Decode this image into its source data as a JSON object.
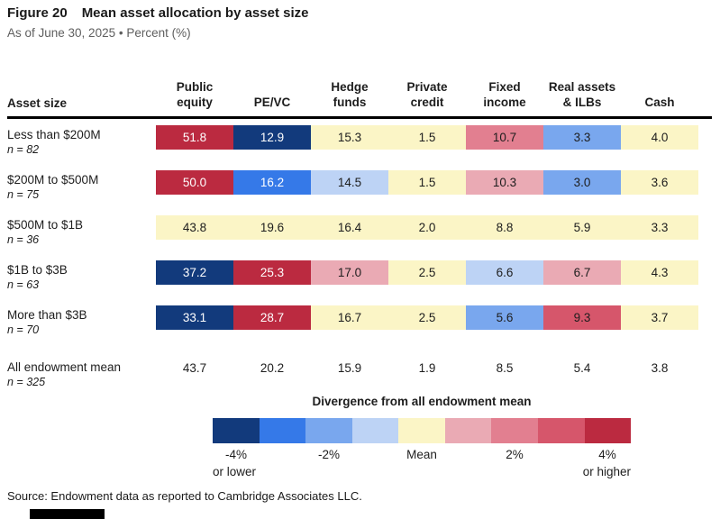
{
  "header": {
    "figure_label": "Figure 20",
    "title": "Mean asset allocation by asset size",
    "subtitle": "As of June 30, 2025 • Percent (%)"
  },
  "table": {
    "row_header": "Asset size",
    "columns": [
      {
        "line1": "Public",
        "line2": "equity"
      },
      {
        "line1": "",
        "line2": "PE/VC"
      },
      {
        "line1": "Hedge",
        "line2": "funds"
      },
      {
        "line1": "Private",
        "line2": "credit"
      },
      {
        "line1": "Fixed",
        "line2": "income"
      },
      {
        "line1": "Real assets",
        "line2": "& ILBs"
      },
      {
        "line1": "",
        "line2": "Cash"
      }
    ],
    "rows": [
      {
        "label": "Less than $200M",
        "n": "n = 82",
        "values": [
          "51.8",
          "12.9",
          "15.3",
          "1.5",
          "10.7",
          "3.3",
          "4.0"
        ],
        "segs": [
          9,
          1,
          5,
          5,
          7,
          3,
          5
        ]
      },
      {
        "label": "$200M to $500M",
        "n": "n = 75",
        "values": [
          "50.0",
          "16.2",
          "14.5",
          "1.5",
          "10.3",
          "3.0",
          "3.6"
        ],
        "segs": [
          9,
          2,
          4,
          5,
          6,
          3,
          5
        ]
      },
      {
        "label": "$500M to $1B",
        "n": "n = 36",
        "values": [
          "43.8",
          "19.6",
          "16.4",
          "2.0",
          "8.8",
          "5.9",
          "3.3"
        ],
        "segs": [
          5,
          5,
          5,
          5,
          5,
          5,
          5
        ]
      },
      {
        "label": "$1B to $3B",
        "n": "n = 63",
        "values": [
          "37.2",
          "25.3",
          "17.0",
          "2.5",
          "6.6",
          "6.7",
          "4.3"
        ],
        "segs": [
          1,
          9,
          6,
          5,
          4,
          6,
          5
        ]
      },
      {
        "label": "More than $3B",
        "n": "n = 70",
        "values": [
          "33.1",
          "28.7",
          "16.7",
          "2.5",
          "5.6",
          "9.3",
          "3.7"
        ],
        "segs": [
          1,
          9,
          5,
          5,
          3,
          8,
          5
        ]
      }
    ],
    "mean_row": {
      "label": "All endowment mean",
      "n": "n = 325",
      "values": [
        "43.7",
        "20.2",
        "15.9",
        "1.9",
        "8.5",
        "5.4",
        "3.8"
      ]
    }
  },
  "legend": {
    "title": "Divergence from all endowment mean",
    "segment_colors": [
      "#123a7c",
      "#3579e8",
      "#79a7ee",
      "#bdd3f5",
      "#fbf5c6",
      "#eaaab4",
      "#e27f90",
      "#d6566b",
      "#bb2a40"
    ],
    "white_text_segments": [
      1,
      2,
      9
    ],
    "text_color": "#1d1d1d",
    "tick_minus4": "-4%",
    "tick_minus4_sub": "or lower",
    "tick_minus2": "-2%",
    "tick_mean": "Mean",
    "tick_plus2": "2%",
    "tick_plus4": "4%",
    "tick_plus4_sub": "or higher"
  },
  "source": "Source: Endowment data as reported to Cambridge Associates LLC.",
  "chart_data": {
    "type": "heatmap",
    "title": "Figure 20 Mean asset allocation by asset size",
    "subtitle": "As of June 30, 2025 • Percent (%)",
    "columns": [
      "Public equity",
      "PE/VC",
      "Hedge funds",
      "Private credit",
      "Fixed income",
      "Real assets & ILBs",
      "Cash"
    ],
    "rows": [
      {
        "asset_size": "Less than $200M",
        "n": 82,
        "values": [
          51.8,
          12.9,
          15.3,
          1.5,
          10.7,
          3.3,
          4.0
        ]
      },
      {
        "asset_size": "$200M to $500M",
        "n": 75,
        "values": [
          50.0,
          16.2,
          14.5,
          1.5,
          10.3,
          3.0,
          3.6
        ]
      },
      {
        "asset_size": "$500M to $1B",
        "n": 36,
        "values": [
          43.8,
          19.6,
          16.4,
          2.0,
          8.8,
          5.9,
          3.3
        ]
      },
      {
        "asset_size": "$1B to $3B",
        "n": 63,
        "values": [
          37.2,
          25.3,
          17.0,
          2.5,
          6.6,
          6.7,
          4.3
        ]
      },
      {
        "asset_size": "More than $3B",
        "n": 70,
        "values": [
          33.1,
          28.7,
          16.7,
          2.5,
          5.6,
          9.3,
          3.7
        ]
      },
      {
        "asset_size": "All endowment mean",
        "n": 325,
        "values": [
          43.7,
          20.2,
          15.9,
          1.9,
          8.5,
          5.4,
          3.8
        ]
      }
    ],
    "color_scale": {
      "label": "Divergence from all endowment mean",
      "ticks": [
        "-4% or lower",
        "-2%",
        "Mean",
        "2%",
        "4% or higher"
      ],
      "colors": [
        "#123a7c",
        "#3579e8",
        "#79a7ee",
        "#bdd3f5",
        "#fbf5c6",
        "#eaaab4",
        "#e27f90",
        "#d6566b",
        "#bb2a40"
      ],
      "unit": "percentage points"
    }
  }
}
